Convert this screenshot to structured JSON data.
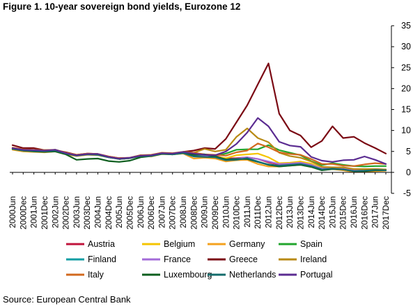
{
  "figure": {
    "title": "Figure 1. 10-year sovereign bond yields, Eurozone 12",
    "source": "Source: European Central Bank"
  },
  "chart_data": {
    "type": "line",
    "title": "Figure 1. 10-year sovereign bond yields, Eurozone 12",
    "xlabel": "",
    "ylabel": "",
    "ylim": [
      -5,
      35
    ],
    "yticks": [
      -5,
      0,
      5,
      10,
      15,
      20,
      25,
      30,
      35
    ],
    "y_axis_side": "right",
    "grid": false,
    "legend_position": "bottom",
    "x_tick_labels": [
      "2000Jun",
      "2000Dec",
      "2001Jun",
      "2001Dec",
      "2002Jun",
      "2002Dec",
      "2003Jun",
      "2003Dec",
      "2004Jun",
      "2004Dec",
      "2005Jun",
      "2005Dec",
      "2006Jun",
      "2006Dec",
      "2007Jun",
      "2007Dec",
      "2008Jun",
      "2008Dec",
      "2009Jun",
      "2009Dec",
      "2010Jun",
      "2010Dec",
      "2011Jun",
      "2011Dec",
      "2012Jun",
      "2012Dec",
      "2013Jun",
      "2013Dec",
      "2014Jun",
      "2014Dec",
      "2015Jun",
      "2015Dec",
      "2016Jun",
      "2016Dec",
      "2017Jun",
      "2017Dec"
    ],
    "x": [
      "2000Jun",
      "2000Dec",
      "2001Jun",
      "2001Dec",
      "2002Jun",
      "2002Dec",
      "2003Jun",
      "2003Dec",
      "2004Jun",
      "2004Dec",
      "2005Jun",
      "2005Dec",
      "2006Jun",
      "2006Dec",
      "2007Jun",
      "2007Dec",
      "2008Jun",
      "2008Dec",
      "2009Jun",
      "2009Dec",
      "2010Jun",
      "2010Dec",
      "2011Jun",
      "2011Dec",
      "2012Jun",
      "2012Dec",
      "2013Jun",
      "2013Dec",
      "2014Jun",
      "2014Dec",
      "2015Jun",
      "2015Dec",
      "2016Jun",
      "2016Dec",
      "2017Jun",
      "2017Dec"
    ],
    "series": [
      {
        "name": "Austria",
        "color": "#c0143c",
        "values": [
          5.6,
          5.4,
          5.3,
          5.1,
          5.3,
          4.6,
          4.0,
          4.3,
          4.3,
          3.7,
          3.2,
          3.4,
          3.9,
          3.9,
          4.5,
          4.4,
          4.6,
          4.0,
          4.1,
          3.9,
          3.3,
          3.4,
          3.6,
          3.2,
          2.4,
          1.9,
          2.1,
          2.0,
          1.6,
          0.8,
          1.0,
          0.9,
          0.5,
          0.5,
          0.7,
          0.6
        ]
      },
      {
        "name": "Belgium",
        "color": "#f5c400",
        "values": [
          5.7,
          5.3,
          5.2,
          5.1,
          5.3,
          4.6,
          4.1,
          4.3,
          4.3,
          3.7,
          3.3,
          3.4,
          3.9,
          4.0,
          4.6,
          4.5,
          4.8,
          4.0,
          4.0,
          3.7,
          3.4,
          4.1,
          4.3,
          4.5,
          3.6,
          2.2,
          2.3,
          2.6,
          2.1,
          0.9,
          1.0,
          0.9,
          0.5,
          0.6,
          0.8,
          0.6
        ]
      },
      {
        "name": "Germany",
        "color": "#f4a11d",
        "values": [
          5.4,
          5.0,
          4.9,
          4.8,
          5.0,
          4.3,
          3.9,
          4.2,
          4.1,
          3.6,
          3.2,
          3.4,
          3.9,
          3.8,
          4.4,
          4.3,
          4.5,
          3.3,
          3.5,
          3.3,
          2.6,
          2.9,
          3.0,
          2.0,
          1.4,
          1.4,
          1.6,
          1.8,
          1.3,
          0.6,
          0.8,
          0.5,
          0.1,
          0.2,
          0.3,
          0.4
        ]
      },
      {
        "name": "Spain",
        "color": "#21a52d",
        "values": [
          5.7,
          5.4,
          5.3,
          5.1,
          5.4,
          4.6,
          4.1,
          4.3,
          4.3,
          3.7,
          3.2,
          3.4,
          3.9,
          3.9,
          4.5,
          4.4,
          4.8,
          4.2,
          4.0,
          4.0,
          4.5,
          5.4,
          5.5,
          5.5,
          6.5,
          5.3,
          4.7,
          4.1,
          2.7,
          1.7,
          2.2,
          1.8,
          1.5,
          1.4,
          1.5,
          1.5
        ]
      },
      {
        "name": "Finland",
        "color": "#0f9ea3",
        "values": [
          5.7,
          5.3,
          5.2,
          5.1,
          5.3,
          4.6,
          4.0,
          4.3,
          4.2,
          3.6,
          3.2,
          3.4,
          3.9,
          3.9,
          4.5,
          4.4,
          4.6,
          3.8,
          3.9,
          3.7,
          3.0,
          3.1,
          3.4,
          2.6,
          1.8,
          1.6,
          1.8,
          1.9,
          1.5,
          0.7,
          0.9,
          0.8,
          0.4,
          0.4,
          0.6,
          0.5
        ]
      },
      {
        "name": "France",
        "color": "#a36bd8",
        "values": [
          5.6,
          5.2,
          5.1,
          5.0,
          5.2,
          4.5,
          4.0,
          4.3,
          4.3,
          3.7,
          3.2,
          3.4,
          3.9,
          3.9,
          4.5,
          4.4,
          4.6,
          3.8,
          3.8,
          3.7,
          3.1,
          3.3,
          3.6,
          3.2,
          2.6,
          2.0,
          2.1,
          2.3,
          1.8,
          0.9,
          1.1,
          1.0,
          0.6,
          0.8,
          0.8,
          0.7
        ]
      },
      {
        "name": "Greece",
        "color": "#7b0a14",
        "values": [
          6.5,
          5.8,
          5.8,
          5.3,
          5.3,
          4.8,
          4.2,
          4.5,
          4.4,
          3.8,
          3.4,
          3.5,
          4.1,
          4.1,
          4.6,
          4.5,
          4.9,
          5.2,
          5.8,
          5.6,
          8.0,
          12.0,
          16.0,
          21.0,
          26.0,
          14.0,
          10.0,
          8.8,
          6.0,
          7.5,
          11.0,
          8.2,
          8.5,
          7.0,
          5.8,
          4.5
        ]
      },
      {
        "name": "Ireland",
        "color": "#b88a14",
        "values": [
          5.5,
          5.2,
          5.1,
          5.0,
          5.2,
          4.6,
          4.0,
          4.3,
          4.3,
          3.7,
          3.2,
          3.4,
          3.9,
          4.0,
          4.6,
          4.4,
          4.9,
          4.7,
          5.6,
          5.0,
          5.4,
          8.5,
          10.5,
          8.2,
          7.2,
          4.7,
          3.9,
          3.5,
          2.6,
          1.3,
          1.2,
          1.2,
          0.8,
          0.8,
          0.8,
          0.7
        ]
      },
      {
        "name": "Italy",
        "color": "#d2691e",
        "values": [
          5.9,
          5.5,
          5.4,
          5.3,
          5.4,
          4.7,
          4.2,
          4.5,
          4.4,
          3.8,
          3.4,
          3.5,
          4.1,
          4.2,
          4.7,
          4.6,
          4.9,
          4.7,
          4.3,
          4.2,
          4.0,
          4.8,
          5.2,
          6.9,
          6.0,
          4.8,
          4.4,
          4.2,
          3.2,
          2.0,
          2.0,
          1.6,
          1.5,
          1.9,
          2.2,
          2.0
        ]
      },
      {
        "name": "Luxembourg",
        "color": "#0d5e1e",
        "values": [
          5.6,
          5.2,
          5.0,
          4.9,
          5.0,
          4.3,
          3.0,
          3.2,
          3.3,
          2.7,
          2.5,
          2.8,
          3.6,
          3.9,
          4.4,
          4.3,
          4.6,
          4.2,
          4.3,
          3.8,
          3.1,
          3.2,
          3.2,
          2.5,
          1.8,
          1.4,
          1.6,
          1.8,
          1.3,
          0.5,
          0.8,
          0.7,
          0.3,
          0.3,
          0.5,
          0.5
        ]
      },
      {
        "name": "Netherlands",
        "color": "#136b6b",
        "values": [
          5.6,
          5.2,
          5.1,
          5.0,
          5.2,
          4.5,
          4.0,
          4.3,
          4.2,
          3.6,
          3.2,
          3.4,
          3.9,
          3.9,
          4.5,
          4.3,
          4.6,
          3.8,
          3.7,
          3.6,
          2.9,
          3.0,
          3.4,
          2.5,
          1.9,
          1.6,
          1.8,
          2.0,
          1.5,
          0.7,
          0.9,
          0.7,
          0.3,
          0.4,
          0.6,
          0.5
        ]
      },
      {
        "name": "Portugal",
        "color": "#5b2c91",
        "values": [
          5.8,
          5.4,
          5.3,
          5.2,
          5.4,
          4.6,
          4.1,
          4.4,
          4.4,
          3.7,
          3.3,
          3.5,
          4.0,
          4.1,
          4.6,
          4.5,
          4.9,
          4.5,
          4.2,
          4.1,
          5.0,
          6.8,
          9.5,
          13.0,
          11.0,
          7.3,
          6.4,
          6.1,
          3.7,
          2.8,
          2.5,
          2.9,
          3.0,
          3.8,
          3.0,
          2.0
        ]
      }
    ]
  }
}
